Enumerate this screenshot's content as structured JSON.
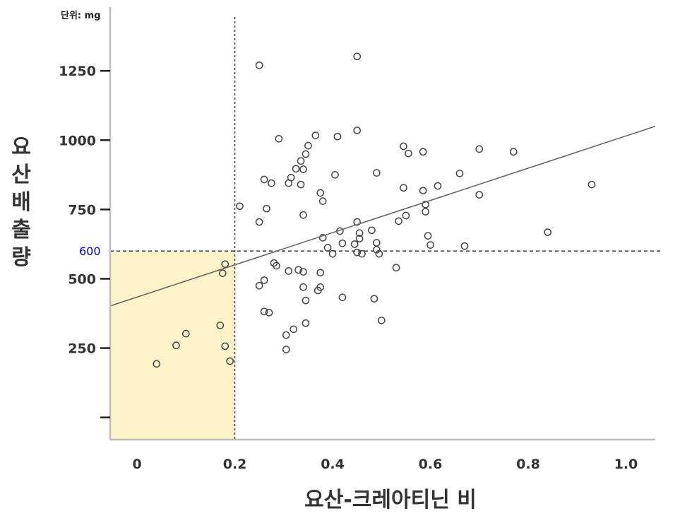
{
  "chart_data": {
    "type": "scatter",
    "unit_label": "단위: mg",
    "xlabel": "요산-크레아티닌 비",
    "ylabel": "요산배출량",
    "xlim": [
      -0.055,
      1.06
    ],
    "ylim": [
      -80,
      1480
    ],
    "x_ticks": [
      "0",
      "0.2",
      "0.4",
      "0.6",
      "0.8",
      "1.0"
    ],
    "x_tick_values": [
      0,
      0.2,
      0.4,
      0.6,
      0.8,
      1.0
    ],
    "y_ticks": [
      "1250",
      "1000",
      "750",
      "500",
      "250",
      ""
    ],
    "y_tick_values": [
      1250,
      1000,
      750,
      500,
      250,
      0
    ],
    "highlight_x_tick": "0.2",
    "reference_lines": {
      "x": 0.2,
      "y": 600,
      "y_label": "600",
      "label_color": "#0000cc"
    },
    "highlight_region": {
      "x": [
        -0.055,
        0.2
      ],
      "y": [
        -80,
        600
      ],
      "color": "#fdf2c8"
    },
    "regression_line": {
      "x": [
        -0.055,
        1.06
      ],
      "y": [
        402,
        1050
      ]
    },
    "points": [
      [
        0.04,
        193
      ],
      [
        0.08,
        260
      ],
      [
        0.1,
        302
      ],
      [
        0.17,
        332
      ],
      [
        0.18,
        257
      ],
      [
        0.19,
        203
      ],
      [
        0.175,
        520
      ],
      [
        0.18,
        553
      ],
      [
        0.21,
        762
      ],
      [
        0.25,
        1270
      ],
      [
        0.25,
        475
      ],
      [
        0.25,
        705
      ],
      [
        0.26,
        495
      ],
      [
        0.26,
        382
      ],
      [
        0.26,
        858
      ],
      [
        0.265,
        753
      ],
      [
        0.27,
        378
      ],
      [
        0.275,
        845
      ],
      [
        0.28,
        557
      ],
      [
        0.285,
        547
      ],
      [
        0.29,
        1005
      ],
      [
        0.305,
        297
      ],
      [
        0.305,
        245
      ],
      [
        0.31,
        528
      ],
      [
        0.31,
        845
      ],
      [
        0.315,
        865
      ],
      [
        0.32,
        318
      ],
      [
        0.325,
        897
      ],
      [
        0.33,
        532
      ],
      [
        0.335,
        840
      ],
      [
        0.335,
        925
      ],
      [
        0.34,
        895
      ],
      [
        0.34,
        525
      ],
      [
        0.34,
        470
      ],
      [
        0.34,
        730
      ],
      [
        0.345,
        422
      ],
      [
        0.345,
        340
      ],
      [
        0.345,
        950
      ],
      [
        0.35,
        980
      ],
      [
        0.365,
        1017
      ],
      [
        0.37,
        458
      ],
      [
        0.375,
        470
      ],
      [
        0.375,
        810
      ],
      [
        0.375,
        522
      ],
      [
        0.38,
        780
      ],
      [
        0.38,
        648
      ],
      [
        0.39,
        612
      ],
      [
        0.4,
        590
      ],
      [
        0.405,
        875
      ],
      [
        0.41,
        1013
      ],
      [
        0.415,
        672
      ],
      [
        0.42,
        628
      ],
      [
        0.42,
        433
      ],
      [
        0.445,
        625
      ],
      [
        0.45,
        705
      ],
      [
        0.45,
        1035
      ],
      [
        0.45,
        1302
      ],
      [
        0.45,
        595
      ],
      [
        0.455,
        665
      ],
      [
        0.455,
        645
      ],
      [
        0.46,
        590
      ],
      [
        0.48,
        675
      ],
      [
        0.485,
        428
      ],
      [
        0.49,
        882
      ],
      [
        0.49,
        630
      ],
      [
        0.49,
        605
      ],
      [
        0.495,
        590
      ],
      [
        0.5,
        350
      ],
      [
        0.53,
        540
      ],
      [
        0.535,
        708
      ],
      [
        0.545,
        978
      ],
      [
        0.545,
        828
      ],
      [
        0.55,
        728
      ],
      [
        0.555,
        952
      ],
      [
        0.585,
        958
      ],
      [
        0.585,
        818
      ],
      [
        0.59,
        768
      ],
      [
        0.59,
        742
      ],
      [
        0.595,
        655
      ],
      [
        0.6,
        622
      ],
      [
        0.615,
        835
      ],
      [
        0.66,
        880
      ],
      [
        0.67,
        618
      ],
      [
        0.7,
        968
      ],
      [
        0.7,
        803
      ],
      [
        0.77,
        958
      ],
      [
        0.84,
        668
      ],
      [
        0.93,
        840
      ]
    ]
  }
}
